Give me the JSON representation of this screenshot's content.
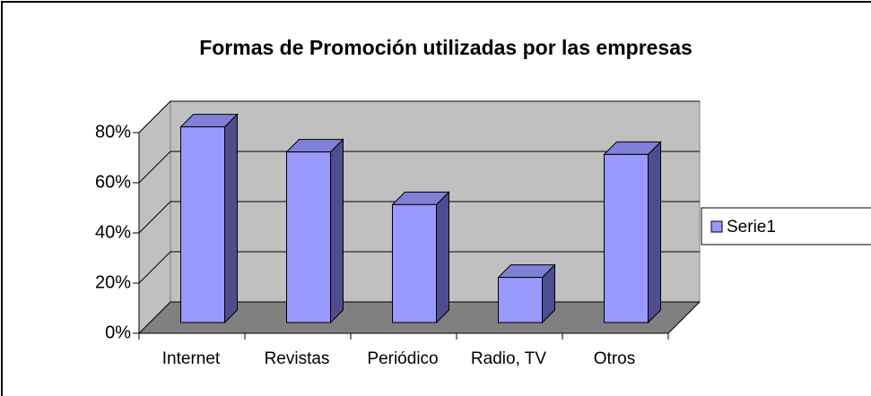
{
  "chart_data": {
    "type": "bar3d",
    "title": "Formas de Promoción utilizadas por las empresas",
    "categories": [
      "Internet",
      "Revistas",
      "Periódico",
      "Radio, TV",
      "Otros"
    ],
    "series": [
      {
        "name": "Serie1",
        "color": "#9999ff",
        "values": [
          78,
          68,
          47,
          18,
          67
        ]
      }
    ],
    "ylim": [
      0,
      80
    ],
    "yticks": [
      {
        "value": 0,
        "label": "0%"
      },
      {
        "value": 20,
        "label": "20%"
      },
      {
        "value": 40,
        "label": "40%"
      },
      {
        "value": 60,
        "label": "60%"
      },
      {
        "value": 80,
        "label": "80%"
      }
    ],
    "grid": true,
    "legend": "right"
  }
}
